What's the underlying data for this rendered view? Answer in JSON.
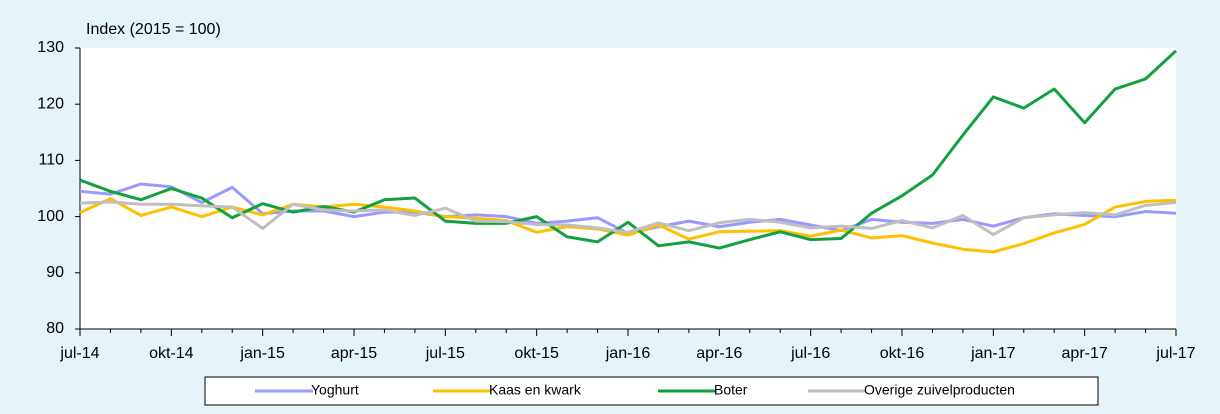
{
  "chart_data": {
    "type": "line",
    "y_axis_label": "Index (2015 = 100)",
    "categories": [
      "jul-14",
      null,
      null,
      "okt-14",
      null,
      null,
      "jan-15",
      null,
      null,
      "apr-15",
      null,
      null,
      "jul-15",
      null,
      null,
      "okt-15",
      null,
      null,
      "jan-16",
      null,
      null,
      "apr-16",
      null,
      null,
      "jul-16",
      null,
      null,
      "okt-16",
      null,
      null,
      "jan-17",
      null,
      null,
      "apr-17",
      null,
      null,
      "jul-17"
    ],
    "series": [
      {
        "name": "Yoghurt",
        "color": "#9999ff",
        "values": [
          104.5,
          104,
          105.8,
          105.3,
          102.5,
          105.2,
          100.5,
          101,
          101,
          100,
          100.8,
          100.8,
          100,
          100.3,
          100,
          98.8,
          99.2,
          99.8,
          97,
          98.2,
          99.2,
          98.2,
          99,
          99.5,
          98.5,
          97.5,
          99.5,
          99,
          98.8,
          99.5,
          98.3,
          99.8,
          100.5,
          100.2,
          100,
          100.9,
          100.6
        ]
      },
      {
        "name": "Kaas en kwark",
        "color": "#ffc000",
        "values": [
          100.7,
          103.2,
          100.2,
          101.7,
          100,
          101.7,
          100.3,
          102.2,
          101.7,
          102.2,
          101.7,
          101,
          100,
          99.7,
          99.3,
          97.2,
          98.2,
          97.8,
          96.7,
          98.5,
          96,
          97.3,
          97.4,
          97.5,
          96.5,
          97.6,
          96.2,
          96.6,
          95.3,
          94.2,
          93.7,
          95.2,
          97.1,
          98.6,
          101.7,
          102.7,
          102.9
        ]
      },
      {
        "name": "Boter",
        "color": "#12a13f",
        "values": [
          106.5,
          104.5,
          103,
          105,
          103.3,
          99.8,
          102.3,
          100.8,
          101.8,
          100.8,
          103,
          103.3,
          99.2,
          98.8,
          98.8,
          100,
          96.4,
          95.5,
          99,
          94.8,
          95.5,
          94.4,
          95.9,
          97.3,
          95.9,
          96.1,
          100.6,
          103.7,
          107.4,
          114.5,
          121.3,
          119.3,
          122.7,
          116.7,
          122.7,
          124.5,
          129.5
        ]
      },
      {
        "name": "Overige zuivelproducten",
        "color": "#bfbfbf",
        "values": [
          102.4,
          102.6,
          102.2,
          102.2,
          101.9,
          101.7,
          97.9,
          102.2,
          101.2,
          101,
          101.2,
          100.2,
          101.5,
          99.2,
          99.1,
          98.6,
          98.5,
          98,
          97.2,
          98.9,
          97.5,
          98.9,
          99.5,
          99,
          98,
          98.3,
          97.9,
          99.3,
          98,
          100.2,
          96.8,
          99.8,
          100.3,
          100.7,
          100.3,
          102,
          102.5
        ]
      }
    ],
    "ylim": [
      80,
      130
    ],
    "yticks": [
      80,
      90,
      100,
      110,
      120,
      130
    ],
    "grid": false,
    "legend": "bottom"
  }
}
